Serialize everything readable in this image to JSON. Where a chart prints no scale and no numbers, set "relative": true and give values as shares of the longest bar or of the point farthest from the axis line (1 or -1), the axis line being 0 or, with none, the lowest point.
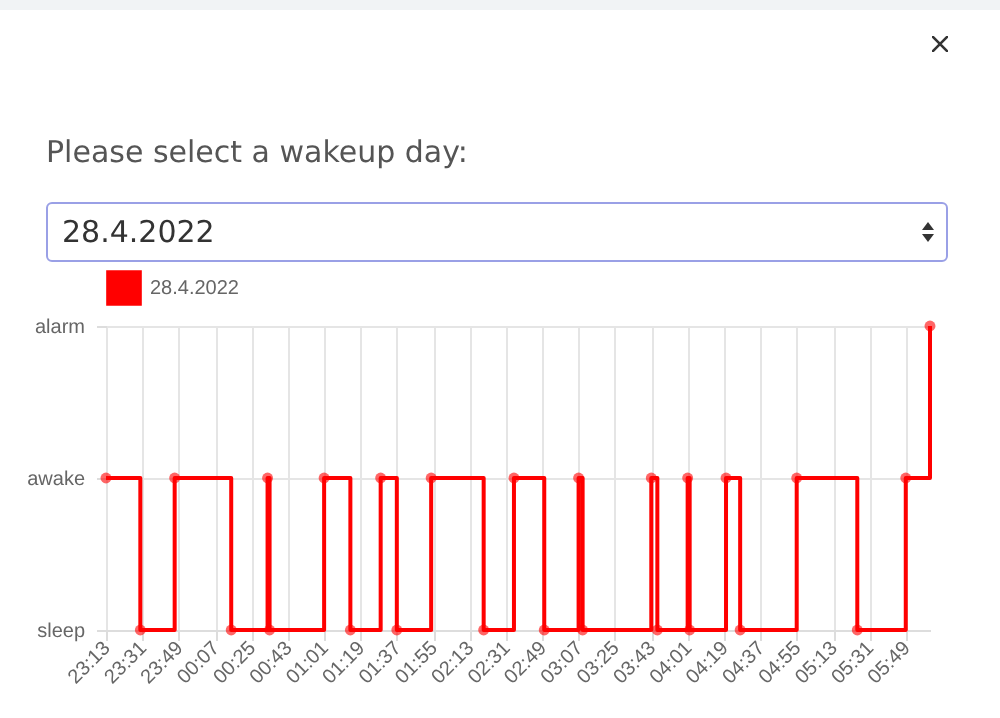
{
  "chart_data": {
    "type": "step",
    "subtitle": "Please select a wakeup day:",
    "annotations": [
      "28.4.2022",
      "sleep",
      "awake",
      "alarm"
    ],
    "x": [
      "2022-04-27T23:13",
      "2022-04-27T23:30",
      "2022-04-27T23:47",
      "2022-04-28T00:15",
      "2022-04-28T00:33",
      "2022-04-28T00:34",
      "2022-04-28T01:01",
      "2022-04-28T01:14",
      "2022-04-28T01:29",
      "2022-04-28T01:37",
      "2022-04-28T01:54",
      "2022-04-28T02:20",
      "2022-04-28T02:35",
      "2022-04-28T02:50",
      "2022-04-28T03:07",
      "2022-04-28T03:09",
      "2022-04-28T03:43",
      "2022-04-28T03:46",
      "2022-04-28T04:01",
      "2022-04-28T04:02",
      "2022-04-28T04:20",
      "2022-04-28T04:27",
      "2022-04-28T04:55",
      "2022-04-28T05:25",
      "2022-04-28T05:49",
      "2022-04-28T06:01"
    ],
    "relative": true,
    "series": [
      {
        "name": "28.4.2022",
        "color": "#ff0000",
        "values": [
          0.5,
          0,
          0.5,
          0,
          0.5,
          0,
          0.5,
          0,
          0.5,
          0,
          0.5,
          0,
          0.5,
          0,
          0.5,
          0,
          0.5,
          0,
          0.5,
          0,
          0.5,
          0,
          0.5,
          0,
          0.5,
          1
        ]
      }
    ],
    "xlim": [
      "2022-04-27T23:13",
      "2022-04-28T06:01"
    ],
    "xticks": [
      {
        "value": "2022-04-27T23:13",
        "label": "23:13"
      },
      {
        "value": "2022-04-27T23:31",
        "label": "23:31"
      },
      {
        "value": "2022-04-27T23:49",
        "label": "23:49"
      },
      {
        "value": "2022-04-28T00:07",
        "label": "00:07"
      },
      {
        "value": "2022-04-28T00:25",
        "label": "00:25"
      },
      {
        "value": "2022-04-28T00:43",
        "label": "00:43"
      },
      {
        "value": "2022-04-28T01:01",
        "label": "01:01"
      },
      {
        "value": "2022-04-28T01:19",
        "label": "01:19"
      },
      {
        "value": "2022-04-28T01:37",
        "label": "01:37"
      },
      {
        "value": "2022-04-28T01:55",
        "label": "01:55"
      },
      {
        "value": "2022-04-28T02:13",
        "label": "02:13"
      },
      {
        "value": "2022-04-28T02:31",
        "label": "02:31"
      },
      {
        "value": "2022-04-28T02:49",
        "label": "02:49"
      },
      {
        "value": "2022-04-28T03:07",
        "label": "03:07"
      },
      {
        "value": "2022-04-28T03:25",
        "label": "03:25"
      },
      {
        "value": "2022-04-28T03:43",
        "label": "03:43"
      },
      {
        "value": "2022-04-28T04:01",
        "label": "04:01"
      },
      {
        "value": "2022-04-28T04:19",
        "label": "04:19"
      },
      {
        "value": "2022-04-28T04:37",
        "label": "04:37"
      },
      {
        "value": "2022-04-28T04:55",
        "label": "04:55"
      },
      {
        "value": "2022-04-28T05:13",
        "label": "05:13"
      },
      {
        "value": "2022-04-28T05:31",
        "label": "05:31"
      },
      {
        "value": "2022-04-28T05:49",
        "label": "05:49"
      }
    ],
    "grid": true,
    "legend": "top",
    "marker": "circle",
    "line_style": "solid"
  }
}
